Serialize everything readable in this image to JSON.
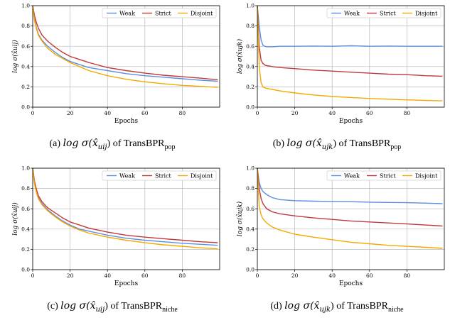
{
  "chart_data": [
    {
      "type": "line",
      "caption_prefix": "(a)",
      "caption_math": "log σ(x̂",
      "caption_sub_var": "uij",
      "caption_mid": ") of TransBPR",
      "caption_sub": "pop",
      "xlabel": "Epochs",
      "ylabel": "log σ(x̂uij)",
      "xlim": [
        0,
        100
      ],
      "ylim": [
        0.0,
        1.0
      ],
      "xticks": [
        "0",
        "20",
        "40",
        "60",
        "80"
      ],
      "yticks": [
        "0.0",
        "0.2",
        "0.4",
        "0.6",
        "0.8",
        "1.0"
      ],
      "grid": true,
      "legend": "top-right",
      "x": [
        0,
        1,
        2,
        3,
        5,
        8,
        12,
        16,
        20,
        25,
        30,
        40,
        50,
        60,
        70,
        80,
        90,
        99
      ],
      "series": [
        {
          "name": "Weak",
          "color": "#5b8fe0",
          "values": [
            1.0,
            0.86,
            0.78,
            0.72,
            0.66,
            0.6,
            0.54,
            0.49,
            0.45,
            0.42,
            0.39,
            0.36,
            0.33,
            0.31,
            0.295,
            0.28,
            0.265,
            0.255
          ]
        },
        {
          "name": "Strict",
          "color": "#c0393b",
          "values": [
            1.0,
            0.9,
            0.83,
            0.78,
            0.71,
            0.65,
            0.59,
            0.54,
            0.5,
            0.47,
            0.44,
            0.39,
            0.36,
            0.335,
            0.315,
            0.3,
            0.285,
            0.27
          ]
        },
        {
          "name": "Disjoint",
          "color": "#f5a800",
          "values": [
            1.0,
            0.85,
            0.77,
            0.71,
            0.65,
            0.58,
            0.52,
            0.48,
            0.44,
            0.4,
            0.36,
            0.31,
            0.275,
            0.25,
            0.23,
            0.215,
            0.205,
            0.195
          ]
        }
      ]
    },
    {
      "type": "line",
      "caption_prefix": "(b)",
      "caption_math": "log σ(x̂",
      "caption_sub_var": "ujk",
      "caption_mid": ") of TransBPR",
      "caption_sub": "pop",
      "xlabel": "Epochs",
      "ylabel": "log σ(x̂ujk)",
      "xlim": [
        0,
        100
      ],
      "ylim": [
        0.0,
        1.0
      ],
      "xticks": [
        "0",
        "20",
        "40",
        "60",
        "80"
      ],
      "yticks": [
        "0.0",
        "0.2",
        "0.4",
        "0.6",
        "0.8",
        "1.0"
      ],
      "grid": true,
      "legend": "top-right",
      "x": [
        0,
        1,
        2,
        3,
        4,
        5,
        8,
        12,
        20,
        30,
        40,
        50,
        60,
        70,
        80,
        90,
        99
      ],
      "series": [
        {
          "name": "Weak",
          "color": "#5b8fe0",
          "values": [
            1.0,
            0.8,
            0.66,
            0.61,
            0.6,
            0.595,
            0.595,
            0.6,
            0.6,
            0.602,
            0.6,
            0.605,
            0.6,
            0.602,
            0.6,
            0.6,
            0.6
          ]
        },
        {
          "name": "Strict",
          "color": "#c0393b",
          "values": [
            1.0,
            0.6,
            0.46,
            0.43,
            0.415,
            0.41,
            0.4,
            0.39,
            0.38,
            0.365,
            0.355,
            0.345,
            0.335,
            0.325,
            0.32,
            0.31,
            0.305
          ]
        },
        {
          "name": "Disjoint",
          "color": "#f5a800",
          "values": [
            1.0,
            0.4,
            0.24,
            0.2,
            0.19,
            0.185,
            0.175,
            0.16,
            0.14,
            0.12,
            0.105,
            0.095,
            0.085,
            0.078,
            0.072,
            0.066,
            0.062
          ]
        }
      ]
    },
    {
      "type": "line",
      "caption_prefix": "(c)",
      "caption_math": "log σ(x̂",
      "caption_sub_var": "uij",
      "caption_mid": ") of TransBPR",
      "caption_sub": "niche",
      "xlabel": "Epochs",
      "ylabel": "log σ(x̂uij)",
      "xlim": [
        0,
        100
      ],
      "ylim": [
        0.0,
        1.0
      ],
      "xticks": [
        "0",
        "20",
        "40",
        "60",
        "80"
      ],
      "yticks": [
        "0.0",
        "0.2",
        "0.4",
        "0.6",
        "0.8",
        "1.0"
      ],
      "grid": true,
      "legend": "top-right",
      "x": [
        0,
        1,
        2,
        3,
        5,
        8,
        12,
        16,
        20,
        25,
        30,
        40,
        50,
        60,
        70,
        80,
        90,
        99
      ],
      "series": [
        {
          "name": "Weak",
          "color": "#5b8fe0",
          "values": [
            1.0,
            0.85,
            0.77,
            0.71,
            0.65,
            0.59,
            0.53,
            0.48,
            0.44,
            0.4,
            0.38,
            0.34,
            0.31,
            0.29,
            0.275,
            0.26,
            0.25,
            0.24
          ]
        },
        {
          "name": "Strict",
          "color": "#c0393b",
          "values": [
            1.0,
            0.87,
            0.79,
            0.73,
            0.67,
            0.61,
            0.56,
            0.51,
            0.47,
            0.44,
            0.41,
            0.37,
            0.34,
            0.32,
            0.305,
            0.29,
            0.275,
            0.265
          ]
        },
        {
          "name": "Disjoint",
          "color": "#f5a800",
          "values": [
            1.0,
            0.84,
            0.76,
            0.7,
            0.64,
            0.58,
            0.52,
            0.47,
            0.43,
            0.39,
            0.36,
            0.32,
            0.29,
            0.265,
            0.245,
            0.23,
            0.215,
            0.205
          ]
        }
      ]
    },
    {
      "type": "line",
      "caption_prefix": "(d)",
      "caption_math": "log σ(x̂",
      "caption_sub_var": "ujk",
      "caption_mid": ") of TransBPR",
      "caption_sub": "niche",
      "xlabel": "Epochs",
      "ylabel": "log σ(x̂ujk)",
      "xlim": [
        0,
        100
      ],
      "ylim": [
        0.0,
        1.0
      ],
      "xticks": [
        "0",
        "20",
        "40",
        "60",
        "80"
      ],
      "yticks": [
        "0.0",
        "0.2",
        "0.4",
        "0.6",
        "0.8",
        "1.0"
      ],
      "grid": true,
      "legend": "top-right",
      "x": [
        0,
        1,
        2,
        3,
        5,
        8,
        12,
        20,
        30,
        40,
        50,
        60,
        70,
        80,
        90,
        99
      ],
      "series": [
        {
          "name": "Weak",
          "color": "#5b8fe0",
          "values": [
            1.0,
            0.86,
            0.8,
            0.77,
            0.74,
            0.71,
            0.69,
            0.68,
            0.675,
            0.672,
            0.67,
            0.665,
            0.662,
            0.66,
            0.655,
            0.65
          ]
        },
        {
          "name": "Strict",
          "color": "#c0393b",
          "values": [
            1.0,
            0.8,
            0.7,
            0.65,
            0.6,
            0.57,
            0.55,
            0.53,
            0.51,
            0.495,
            0.48,
            0.47,
            0.46,
            0.45,
            0.44,
            0.43
          ]
        },
        {
          "name": "Disjoint",
          "color": "#f5a800",
          "values": [
            1.0,
            0.62,
            0.54,
            0.5,
            0.46,
            0.42,
            0.39,
            0.35,
            0.32,
            0.295,
            0.27,
            0.255,
            0.24,
            0.23,
            0.22,
            0.21
          ]
        }
      ]
    }
  ]
}
